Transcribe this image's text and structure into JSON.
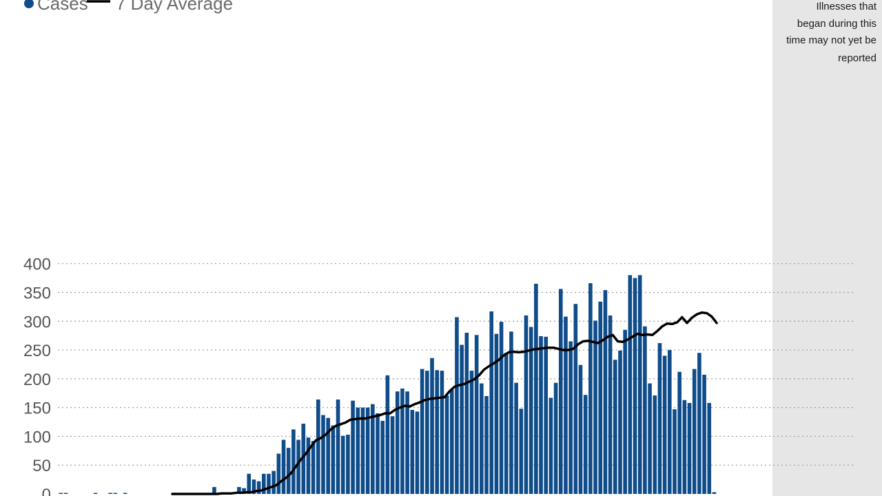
{
  "chart_data": {
    "type": "bar",
    "title": "",
    "xlabel": "",
    "ylabel": "",
    "ylim": [
      0,
      400
    ],
    "yticks": [
      0,
      50,
      100,
      150,
      200,
      250,
      300,
      350,
      400
    ],
    "grid": true,
    "legend": {
      "placement": "top-left",
      "items": [
        {
          "label": "Cases",
          "marker": "dot",
          "color": "#0f4c8a"
        },
        {
          "label": "7 Day Average",
          "marker": "line",
          "color": "#000000"
        }
      ]
    },
    "annotation": {
      "lines": [
        "Illnesses that",
        "began during this",
        "time may not yet be",
        "reported"
      ],
      "shade_color": "#e6e6e6"
    },
    "colors": {
      "bar": "#0f4c8a",
      "average": "#000000",
      "shade": "#e6e6e6",
      "grid": "#9a9a9a"
    },
    "series": [
      {
        "name": "Cases",
        "kind": "bar",
        "values": [
          1,
          1,
          0,
          0,
          0,
          0,
          0,
          1,
          0,
          0,
          1,
          1,
          0,
          1,
          0,
          0,
          0,
          0,
          0,
          0,
          0,
          0,
          0,
          0,
          0,
          0,
          0,
          0,
          0,
          0,
          1,
          12,
          1,
          0,
          1,
          0,
          12,
          10,
          35,
          25,
          22,
          35,
          35,
          40,
          70,
          94,
          80,
          112,
          94,
          122,
          98,
          92,
          164,
          137,
          132,
          119,
          164,
          101,
          103,
          162,
          150,
          150,
          150,
          156,
          140,
          127,
          206,
          135,
          178,
          183,
          178,
          146,
          143,
          217,
          214,
          236,
          215,
          214,
          171,
          181,
          307,
          259,
          280,
          214,
          276,
          192,
          170,
          317,
          278,
          299,
          245,
          282,
          193,
          148,
          310,
          290,
          365,
          274,
          273,
          167,
          193,
          356,
          308,
          265,
          330,
          224,
          172,
          366,
          301,
          334,
          354,
          310,
          233,
          249,
          285,
          380,
          375,
          380,
          291,
          192,
          171,
          262,
          240,
          250,
          147,
          212,
          163,
          158,
          217,
          245,
          207,
          158,
          3
        ]
      },
      {
        "name": "7 Day Average",
        "kind": "line",
        "values": [
          0,
          0,
          0,
          0,
          0,
          0,
          0,
          0,
          0,
          0,
          1,
          1,
          1,
          2,
          2,
          3,
          3,
          5,
          6,
          9,
          12,
          15,
          22,
          28,
          36,
          48,
          60,
          70,
          82,
          93,
          97,
          103,
          112,
          118,
          121,
          124,
          129,
          130,
          131,
          131,
          133,
          135,
          137,
          140,
          140,
          146,
          150,
          153,
          152,
          156,
          159,
          163,
          165,
          166,
          167,
          168,
          178,
          186,
          189,
          191,
          195,
          199,
          206,
          216,
          222,
          227,
          233,
          241,
          246,
          247,
          246,
          247,
          249,
          251,
          252,
          253,
          254,
          254,
          252,
          250,
          250,
          252,
          260,
          265,
          266,
          264,
          262,
          267,
          273,
          276,
          265,
          264,
          268,
          273,
          278,
          276,
          277,
          276,
          283,
          291,
          296,
          295,
          298,
          307,
          297,
          306,
          312,
          315,
          314,
          308,
          297
        ]
      }
    ]
  }
}
